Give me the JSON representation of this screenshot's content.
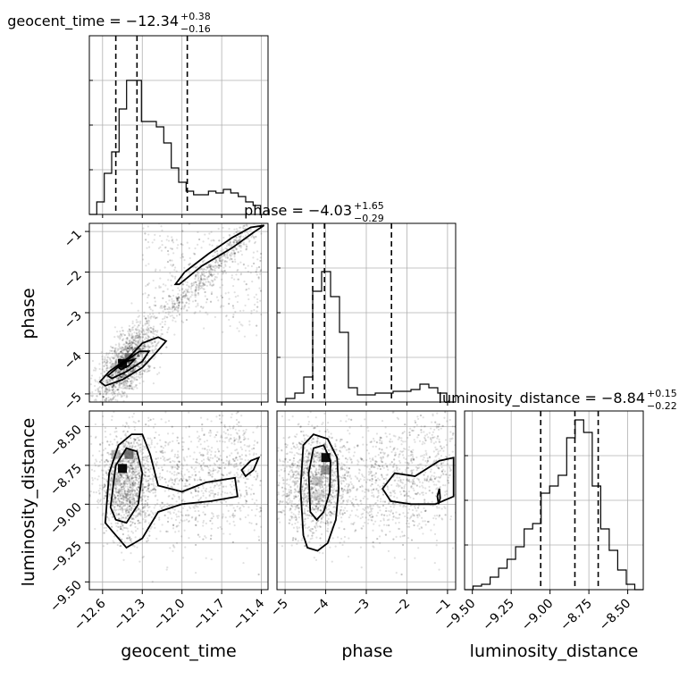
{
  "chart_data": {
    "type": "corner",
    "parameters": [
      "geocent_time",
      "phase",
      "luminosity_distance"
    ],
    "axis_labels": [
      "geocent_time",
      "phase",
      "luminosity_distance"
    ],
    "titles": [
      {
        "text": "geocent_time = −12.34",
        "sup": "+0.38",
        "sub": "−0.16"
      },
      {
        "text": "phase = −4.03",
        "sup": "+1.65",
        "sub": "−0.29"
      },
      {
        "text": "luminosity_distance = −8.84",
        "sup": "+0.15",
        "sub": "−0.22"
      }
    ],
    "ranges": [
      [
        -12.7,
        -11.35
      ],
      [
        -5.2,
        -0.8
      ],
      [
        -9.55,
        -8.4
      ]
    ],
    "ticks": [
      {
        "values": [
          -12.6,
          -12.3,
          -12.0,
          -11.7,
          -11.4
        ],
        "labels": [
          "−12.6",
          "−12.3",
          "−12.0",
          "−11.7",
          "−11.4"
        ]
      },
      {
        "values": [
          -5,
          -4,
          -3,
          -2,
          -1
        ],
        "labels": [
          "−5",
          "−4",
          "−3",
          "−2",
          "−1"
        ]
      },
      {
        "values": [
          -9.5,
          -9.25,
          -9.0,
          -8.75,
          -8.5
        ],
        "labels": [
          "−9.50",
          "−9.25",
          "−9.00",
          "−8.75",
          "−8.50"
        ]
      }
    ],
    "quantiles": [
      [
        -12.5,
        -12.34,
        -11.96
      ],
      [
        -4.32,
        -4.03,
        -2.38
      ],
      [
        -9.06,
        -8.84,
        -8.69
      ]
    ],
    "histograms": [
      {
        "counts": [
          0.0,
          0.07,
          0.23,
          0.35,
          0.59,
          0.75,
          0.75,
          0.52,
          0.52,
          0.49,
          0.4,
          0.26,
          0.18,
          0.13,
          0.11,
          0.11,
          0.13,
          0.12,
          0.14,
          0.12,
          0.1,
          0.07,
          0.05,
          0.0
        ]
      },
      {
        "counts": [
          0.0,
          0.02,
          0.05,
          0.14,
          0.62,
          0.73,
          0.59,
          0.39,
          0.08,
          0.04,
          0.04,
          0.05,
          0.05,
          0.06,
          0.06,
          0.07,
          0.1,
          0.08,
          0.05,
          0.0
        ]
      },
      {
        "counts": [
          0.0,
          0.02,
          0.03,
          0.07,
          0.12,
          0.17,
          0.24,
          0.34,
          0.37,
          0.54,
          0.58,
          0.64,
          0.85,
          0.95,
          0.88,
          0.58,
          0.34,
          0.22,
          0.11,
          0.03,
          0.0
        ]
      }
    ],
    "grid": true
  }
}
